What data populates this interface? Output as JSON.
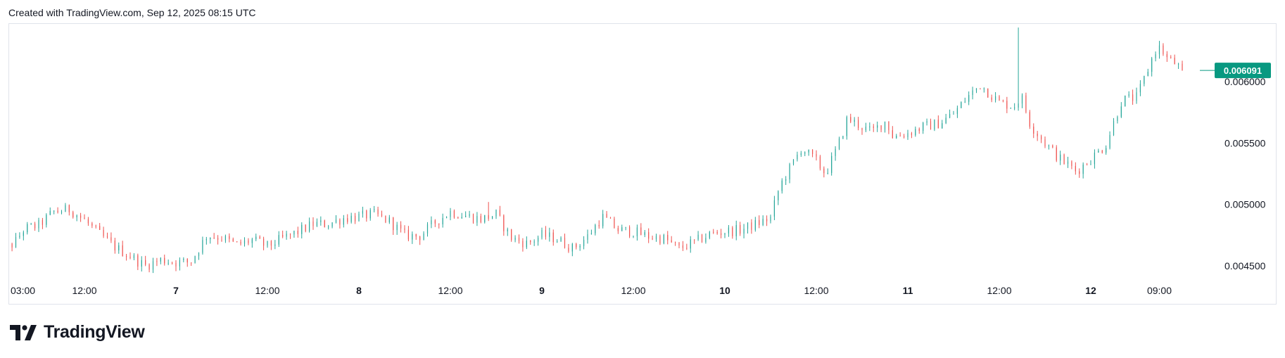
{
  "header": {
    "caption": "Created with TradingView.com, Sep 12, 2025 08:15 UTC"
  },
  "brand": {
    "logo_icon": "tradingview-logo-icon",
    "logo_text": "TradingView"
  },
  "colors": {
    "up": "#26a69a",
    "down": "#ef5350",
    "badge": "#089981",
    "text": "#131722",
    "border": "#e0e3eb"
  },
  "chart_data": {
    "type": "candlestick",
    "title": "",
    "xlabel": "",
    "ylabel": "",
    "ylim": [
      0.00434,
      0.00645
    ],
    "x_ticks": [
      {
        "label": "03:00",
        "day": 6.125,
        "bold": false
      },
      {
        "label": "12:00",
        "day": 6.5,
        "bold": false
      },
      {
        "label": "7",
        "day": 7.0,
        "bold": true
      },
      {
        "label": "12:00",
        "day": 7.5,
        "bold": false
      },
      {
        "label": "8",
        "day": 8.0,
        "bold": true
      },
      {
        "label": "12:00",
        "day": 8.5,
        "bold": false
      },
      {
        "label": "9",
        "day": 9.0,
        "bold": true
      },
      {
        "label": "12:00",
        "day": 9.5,
        "bold": false
      },
      {
        "label": "10",
        "day": 10.0,
        "bold": true
      },
      {
        "label": "12:00",
        "day": 10.5,
        "bold": false
      },
      {
        "label": "11",
        "day": 11.0,
        "bold": true
      },
      {
        "label": "12:00",
        "day": 11.5,
        "bold": false
      },
      {
        "label": "12",
        "day": 12.0,
        "bold": true
      },
      {
        "label": "09:00",
        "day": 12.375,
        "bold": false
      }
    ],
    "y_ticks": [
      {
        "label": "0.006000",
        "value": 0.006
      },
      {
        "label": "0.005500",
        "value": 0.0055
      },
      {
        "label": "0.005000",
        "value": 0.005
      },
      {
        "label": "0.004500",
        "value": 0.0045
      }
    ],
    "last_price": {
      "label": "0.006091",
      "value": 0.006091
    },
    "x_start": 6.0,
    "interval_days": 0.0208333,
    "key_closes": [
      [
        6.0,
        0.00467
      ],
      [
        6.06,
        0.00463
      ],
      [
        6.12,
        0.00469
      ],
      [
        6.17,
        0.0048
      ],
      [
        6.25,
        0.00483
      ],
      [
        6.33,
        0.00494
      ],
      [
        6.42,
        0.00496
      ],
      [
        6.5,
        0.00487
      ],
      [
        6.58,
        0.00476
      ],
      [
        6.67,
        0.00465
      ],
      [
        6.75,
        0.00458
      ],
      [
        6.83,
        0.0045
      ],
      [
        6.92,
        0.00455
      ],
      [
        7.0,
        0.00453
      ],
      [
        7.08,
        0.00453
      ],
      [
        7.17,
        0.00475
      ],
      [
        7.25,
        0.00473
      ],
      [
        7.33,
        0.00467
      ],
      [
        7.42,
        0.00471
      ],
      [
        7.5,
        0.00466
      ],
      [
        7.58,
        0.00472
      ],
      [
        7.67,
        0.00478
      ],
      [
        7.75,
        0.00484
      ],
      [
        7.83,
        0.00484
      ],
      [
        7.92,
        0.00489
      ],
      [
        8.0,
        0.0049
      ],
      [
        8.08,
        0.00492
      ],
      [
        8.17,
        0.00486
      ],
      [
        8.25,
        0.00475
      ],
      [
        8.33,
        0.00474
      ],
      [
        8.42,
        0.00486
      ],
      [
        8.5,
        0.00494
      ],
      [
        8.58,
        0.00491
      ],
      [
        8.67,
        0.00488
      ],
      [
        8.75,
        0.00492
      ],
      [
        8.83,
        0.00473
      ],
      [
        8.92,
        0.00468
      ],
      [
        9.0,
        0.00475
      ],
      [
        9.08,
        0.00472
      ],
      [
        9.17,
        0.00464
      ],
      [
        9.25,
        0.00474
      ],
      [
        9.33,
        0.0049
      ],
      [
        9.42,
        0.00479
      ],
      [
        9.5,
        0.00478
      ],
      [
        9.58,
        0.00474
      ],
      [
        9.67,
        0.00472
      ],
      [
        9.75,
        0.00464
      ],
      [
        9.83,
        0.00469
      ],
      [
        9.92,
        0.00476
      ],
      [
        10.0,
        0.00478
      ],
      [
        10.08,
        0.00479
      ],
      [
        10.17,
        0.00484
      ],
      [
        10.25,
        0.00489
      ],
      [
        10.3,
        0.00515
      ],
      [
        10.35,
        0.00528
      ],
      [
        10.42,
        0.00546
      ],
      [
        10.5,
        0.00535
      ],
      [
        10.55,
        0.00525
      ],
      [
        10.62,
        0.00548
      ],
      [
        10.67,
        0.0057
      ],
      [
        10.75,
        0.00563
      ],
      [
        10.8,
        0.00559
      ],
      [
        10.88,
        0.00568
      ],
      [
        10.92,
        0.00555
      ],
      [
        11.0,
        0.00558
      ],
      [
        11.08,
        0.00563
      ],
      [
        11.17,
        0.00566
      ],
      [
        11.25,
        0.00574
      ],
      [
        11.33,
        0.00588
      ],
      [
        11.4,
        0.00598
      ],
      [
        11.42,
        0.00594
      ],
      [
        11.5,
        0.00583
      ],
      [
        11.58,
        0.0058
      ],
      [
        11.62,
        0.00588
      ],
      [
        11.67,
        0.00565
      ],
      [
        11.75,
        0.0055
      ],
      [
        11.83,
        0.00537
      ],
      [
        11.88,
        0.00532
      ],
      [
        11.92,
        0.00527
      ],
      [
        12.0,
        0.00537
      ],
      [
        12.08,
        0.00548
      ],
      [
        12.17,
        0.00585
      ],
      [
        12.25,
        0.00587
      ],
      [
        12.3,
        0.00605
      ],
      [
        12.35,
        0.00625
      ],
      [
        12.38,
        0.00628
      ],
      [
        12.42,
        0.00618
      ],
      [
        12.46,
        0.00615
      ],
      [
        12.5,
        0.00609
      ]
    ],
    "spikes": [
      {
        "day": 11.6,
        "high": 0.00644
      },
      {
        "day": 8.71,
        "high": 0.00502
      }
    ]
  }
}
